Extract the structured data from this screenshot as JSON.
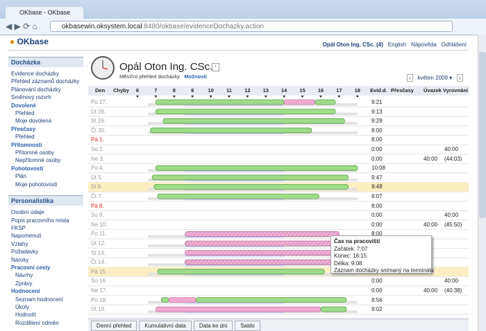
{
  "browser": {
    "tab": "OKbase - OKbase",
    "url_host": "okbasewin.oksystem.local",
    "url_rest": ":8480/okbase/evidenceDochazky.action"
  },
  "header": {
    "logo": "OKbase",
    "user": "Opál Oton Ing. CSc. (4)",
    "links": [
      "English",
      "Nápověda",
      "Odhlášení"
    ]
  },
  "sidebar": [
    {
      "title": "Docházka",
      "items": [
        {
          "text": "Evidence docházky",
          "kind": "item"
        },
        {
          "text": "Přehled záznamů docházky",
          "kind": "item"
        },
        {
          "text": "Plánování docházky",
          "kind": "item"
        },
        {
          "text": "Směnový rozvrh",
          "kind": "item"
        },
        {
          "text": "Dovolené",
          "kind": "group"
        },
        {
          "text": "Přehled",
          "kind": "sub"
        },
        {
          "text": "Moje dovolená",
          "kind": "sub"
        },
        {
          "text": "Přesčasy",
          "kind": "group"
        },
        {
          "text": "Přehled",
          "kind": "sub"
        },
        {
          "text": "Přítomnosti",
          "kind": "group"
        },
        {
          "text": "Přítomné osoby",
          "kind": "sub"
        },
        {
          "text": "Nepřítomné osoby",
          "kind": "sub"
        },
        {
          "text": "Pohotovosti",
          "kind": "group"
        },
        {
          "text": "Plán",
          "kind": "sub"
        },
        {
          "text": "Moje pohotovosti",
          "kind": "sub"
        }
      ]
    },
    {
      "title": "Personalistika",
      "items": [
        {
          "text": "Osobní údaje",
          "kind": "item"
        },
        {
          "text": "Popis pracovního místa",
          "kind": "item"
        },
        {
          "text": "FKSP",
          "kind": "item"
        },
        {
          "text": "Napomenutí",
          "kind": "item"
        },
        {
          "text": "Vztahy",
          "kind": "item"
        },
        {
          "text": "Požadavky",
          "kind": "item"
        },
        {
          "text": "Nároky",
          "kind": "item"
        },
        {
          "text": "Pracovní cesty",
          "kind": "group"
        },
        {
          "text": "Návrhy",
          "kind": "sub"
        },
        {
          "text": "Zprávy",
          "kind": "sub"
        },
        {
          "text": "Hodnocení",
          "kind": "group"
        },
        {
          "text": "Seznam hodnocení",
          "kind": "sub"
        },
        {
          "text": "Úkoly",
          "kind": "sub"
        },
        {
          "text": "Hodnotit",
          "kind": "sub"
        },
        {
          "text": "Rozdělení odměn",
          "kind": "sub"
        }
      ]
    }
  ],
  "main": {
    "title": "Opál Oton Ing. CSc.",
    "subtitle": "Měsíční přehled docházky",
    "options": "Možnosti",
    "month": "květen 2009"
  },
  "table": {
    "columns": {
      "day": "Den",
      "errors": "Chyby",
      "evid": "Evid.d.",
      "overtime": "Přesčasy",
      "load": "Úvazek",
      "balance": "Vyrovnání"
    },
    "hours": [
      6,
      7,
      8,
      9,
      10,
      11,
      12,
      13,
      14,
      15,
      16,
      17,
      18
    ],
    "core": [
      8.6,
      14
    ],
    "rows": [
      {
        "day": "Po 27.",
        "kind": "muted",
        "evid": "9:21",
        "bars": [
          [
            7,
            14,
            "green"
          ],
          [
            14,
            15.7,
            "pink"
          ],
          [
            15.7,
            16.8,
            "green"
          ]
        ]
      },
      {
        "day": "Út 28.",
        "kind": "muted",
        "evid": "9:13",
        "bars": [
          [
            7,
            16.8,
            "green"
          ]
        ]
      },
      {
        "day": "St 29.",
        "kind": "muted",
        "evid": "9:29",
        "bars": [
          [
            7.4,
            17.3,
            "green"
          ]
        ]
      },
      {
        "day": "Čt 30.",
        "kind": "muted",
        "evid": "8:00",
        "bars": [
          [
            6.7,
            15.5,
            "green"
          ]
        ]
      },
      {
        "day": "Pá 1.",
        "kind": "holiday",
        "evid": "8:00",
        "bars": []
      },
      {
        "day": "So 2.",
        "kind": "weekend",
        "evid": "0:00",
        "balance": "40:00",
        "bars": []
      },
      {
        "day": "Ne 3.",
        "kind": "weekend",
        "evid": "0:00",
        "load": "40:00",
        "balance": "(44:03)",
        "bars": []
      },
      {
        "day": "Po 4.",
        "kind": "normal",
        "evid": "10:08",
        "bars": [
          [
            7,
            18,
            "green"
          ]
        ]
      },
      {
        "day": "Út 5.",
        "kind": "normal",
        "evid": "9:47",
        "bars": [
          [
            6.8,
            17.5,
            "green"
          ]
        ]
      },
      {
        "day": "St 6.",
        "kind": "highlight",
        "evid": "9:48",
        "bars": [
          [
            6.9,
            17.5,
            "green"
          ]
        ]
      },
      {
        "day": "Čt 7.",
        "kind": "normal",
        "evid": "8:07",
        "bars": [
          [
            7.1,
            15.9,
            "green"
          ]
        ]
      },
      {
        "day": "Pá 8.",
        "kind": "holiday",
        "evid": "8:00",
        "bars": []
      },
      {
        "day": "So 9.",
        "kind": "weekend",
        "evid": "0:00",
        "balance": "40:00",
        "bars": []
      },
      {
        "day": "Ne 10.",
        "kind": "weekend",
        "evid": "0:00",
        "load": "40:00",
        "balance": "(45:50)",
        "bars": []
      },
      {
        "day": "Po 11.",
        "kind": "normal",
        "evid": "8:00",
        "bars": [
          [
            8.6,
            17,
            "hatch"
          ]
        ]
      },
      {
        "day": "Út 12.",
        "kind": "normal",
        "bars": [
          [
            8.6,
            17,
            "hatch"
          ]
        ]
      },
      {
        "day": "St 13.",
        "kind": "normal",
        "bars": [
          [
            8.6,
            17,
            "hatch"
          ]
        ]
      },
      {
        "day": "Čt 14.",
        "kind": "normal",
        "bars": [
          [
            8.6,
            17,
            "hatch"
          ]
        ]
      },
      {
        "day": "Pá 15.",
        "kind": "highlight",
        "bars": [
          [
            7.1,
            16.2,
            "green"
          ]
        ]
      },
      {
        "day": "So 16.",
        "kind": "weekend",
        "evid": "0:00",
        "balance": "40:00",
        "bars": []
      },
      {
        "day": "Ne 17.",
        "kind": "weekend",
        "evid": "0:00",
        "load": "40:00",
        "balance": "(40:38)",
        "bars": []
      },
      {
        "day": "Po 18.",
        "kind": "normal",
        "evid": "8:56",
        "bars": [
          [
            7.3,
            7.7,
            "green"
          ],
          [
            7.7,
            9.2,
            "pink"
          ],
          [
            9.2,
            17.4,
            "green"
          ]
        ]
      },
      {
        "day": "Út 19.",
        "kind": "normal",
        "evid": "9:02",
        "bars": [
          [
            7,
            16,
            "pink"
          ],
          [
            16,
            17.4,
            "green"
          ]
        ]
      }
    ]
  },
  "tooltip": {
    "title": "Čas na pracovišti",
    "lines": [
      "Začátek: 7:07",
      "Konec: 16:15",
      "Délka: 9:08",
      "Záznam docházky snímaný na terminálu"
    ]
  },
  "tabs": [
    "Denní přehled",
    "Kumulativní data",
    "Data ke dni",
    "Saldo"
  ]
}
